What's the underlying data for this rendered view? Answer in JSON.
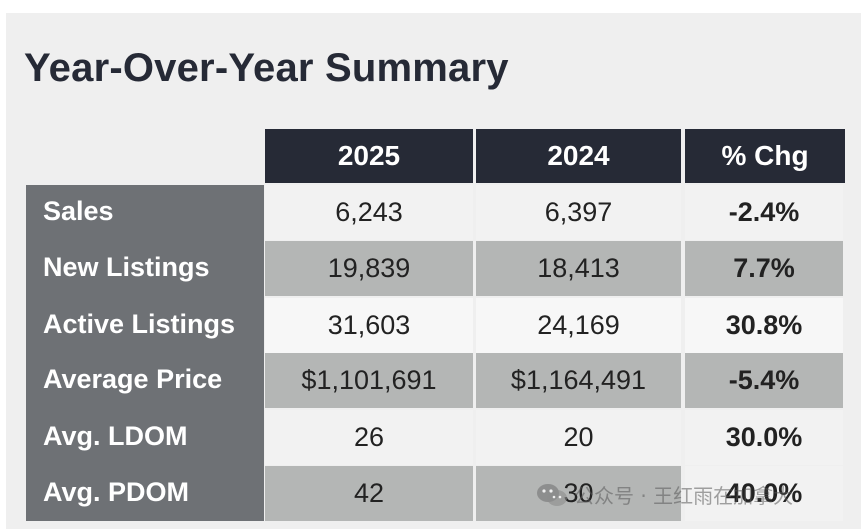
{
  "title": "Year-Over-Year Summary",
  "chart_data": {
    "type": "table",
    "columns": [
      "",
      "2025",
      "2024",
      "% Chg"
    ],
    "rows": [
      {
        "label": "Sales",
        "v2025": "6,243",
        "v2024": "6,397",
        "chg": "-2.4%"
      },
      {
        "label": "New Listings",
        "v2025": "19,839",
        "v2024": "18,413",
        "chg": "7.7%"
      },
      {
        "label": "Active Listings",
        "v2025": "31,603",
        "v2024": "24,169",
        "chg": "30.8%"
      },
      {
        "label": "Average Price",
        "v2025": "$1,101,691",
        "v2024": "$1,164,491",
        "chg": "-5.4%"
      },
      {
        "label": "Avg. LDOM",
        "v2025": "26",
        "v2024": "20",
        "chg": "30.0%"
      },
      {
        "label": "Avg. PDOM",
        "v2025": "42",
        "v2024": "30",
        "chg": "40.0%"
      }
    ]
  },
  "watermark": {
    "text": "公众号 · 王红雨在加拿大",
    "icon": "wechat-icon"
  },
  "colors": {
    "header": "#262a36",
    "label_column": "#6e7175",
    "row_light": "#f2f2f2",
    "row_dark": "#b4b6b5"
  }
}
